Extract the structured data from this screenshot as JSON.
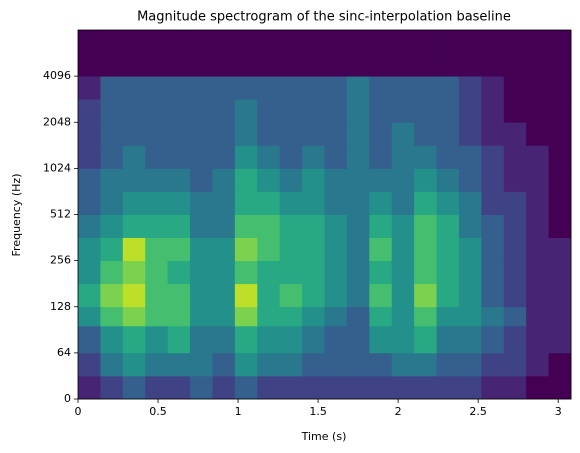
{
  "chart_data": {
    "type": "heatmap",
    "title": "Magnitude spectrogram of the sinc-interpolation baseline",
    "xlabel": "Time (s)",
    "ylabel": "Frequency (Hz)",
    "x_edges": [
      0,
      0.14,
      0.28,
      0.42,
      0.56,
      0.7,
      0.84,
      0.98,
      1.12,
      1.26,
      1.4,
      1.54,
      1.68,
      1.82,
      1.96,
      2.1,
      2.24,
      2.38,
      2.52,
      2.66,
      2.8,
      2.94,
      3.08
    ],
    "y_edges": [
      0,
      32,
      64,
      96,
      128,
      181,
      256,
      362,
      512,
      724,
      1024,
      1448,
      2048,
      2896,
      4096,
      8192
    ],
    "z": [
      [
        1,
        2,
        3,
        2,
        2,
        3,
        2,
        3,
        2,
        2,
        2,
        2,
        2,
        2,
        2,
        2,
        2,
        2,
        1,
        1,
        0,
        0
      ],
      [
        2,
        4,
        5,
        4,
        4,
        4,
        3,
        5,
        4,
        4,
        3,
        3,
        3,
        3,
        4,
        4,
        3,
        3,
        2,
        2,
        1,
        0
      ],
      [
        3,
        5,
        6,
        5,
        6,
        4,
        4,
        6,
        5,
        5,
        4,
        3,
        3,
        5,
        5,
        6,
        4,
        4,
        3,
        2,
        1,
        1
      ],
      [
        5,
        7,
        8,
        7,
        7,
        5,
        5,
        8,
        6,
        6,
        5,
        4,
        3,
        6,
        5,
        7,
        5,
        5,
        4,
        3,
        1,
        1
      ],
      [
        6,
        8,
        9,
        7,
        7,
        5,
        5,
        9,
        6,
        7,
        6,
        5,
        4,
        7,
        5,
        8,
        6,
        5,
        3,
        2,
        1,
        1
      ],
      [
        5,
        7,
        8,
        7,
        6,
        5,
        5,
        7,
        6,
        6,
        6,
        5,
        4,
        6,
        5,
        7,
        6,
        5,
        3,
        2,
        1,
        1
      ],
      [
        5,
        6,
        9,
        7,
        7,
        5,
        5,
        8,
        7,
        6,
        6,
        5,
        4,
        7,
        5,
        7,
        6,
        5,
        3,
        2,
        1,
        1
      ],
      [
        4,
        5,
        6,
        6,
        6,
        4,
        4,
        7,
        7,
        6,
        6,
        5,
        4,
        6,
        5,
        7,
        6,
        4,
        3,
        2,
        1,
        0
      ],
      [
        3,
        4,
        5,
        5,
        5,
        4,
        4,
        6,
        6,
        5,
        5,
        4,
        4,
        5,
        4,
        6,
        5,
        4,
        2,
        2,
        1,
        0
      ],
      [
        3,
        4,
        4,
        4,
        4,
        3,
        4,
        6,
        5,
        4,
        5,
        4,
        4,
        4,
        4,
        5,
        4,
        3,
        2,
        1,
        1,
        0
      ],
      [
        2,
        3,
        4,
        3,
        3,
        3,
        3,
        5,
        4,
        3,
        4,
        3,
        4,
        3,
        4,
        4,
        3,
        3,
        2,
        1,
        1,
        0
      ],
      [
        2,
        3,
        3,
        3,
        3,
        3,
        3,
        4,
        3,
        3,
        3,
        3,
        4,
        3,
        4,
        3,
        3,
        2,
        1,
        1,
        0,
        0
      ],
      [
        2,
        3,
        3,
        3,
        3,
        3,
        3,
        4,
        3,
        3,
        3,
        3,
        4,
        3,
        3,
        3,
        3,
        2,
        1,
        0,
        0,
        0
      ],
      [
        1,
        3,
        3,
        3,
        3,
        3,
        3,
        3,
        3,
        3,
        3,
        3,
        4,
        3,
        3,
        3,
        3,
        2,
        1,
        0,
        0,
        0
      ],
      [
        0,
        0,
        0,
        0,
        0,
        0,
        0,
        0,
        0,
        0,
        0,
        0,
        0,
        0,
        0,
        0,
        0,
        0,
        0,
        0,
        0,
        0
      ]
    ],
    "zlim": [
      0,
      10
    ],
    "colormap": "viridis",
    "xlim": [
      0,
      3.08
    ],
    "xticks": [
      0,
      0.5,
      1,
      1.5,
      2,
      2.5,
      3
    ],
    "yscale": "symlog",
    "base": 2,
    "linthresh": 64,
    "ylim": [
      0,
      8192
    ],
    "yticks": [
      0,
      64,
      128,
      256,
      512,
      1024,
      2048,
      4096
    ]
  }
}
